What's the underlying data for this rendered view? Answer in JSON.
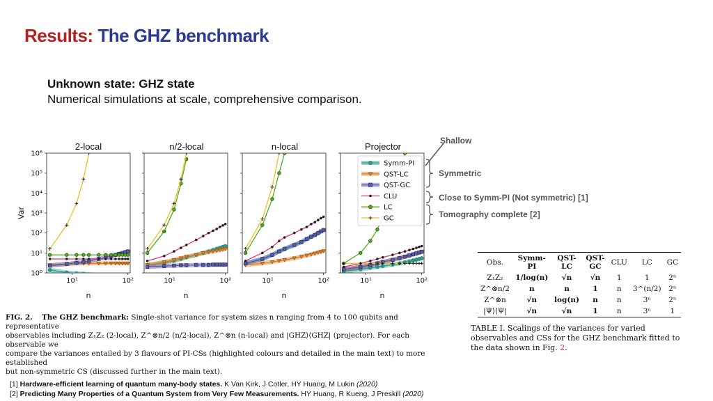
{
  "slide": {
    "title_part1": "Results:",
    "title_part2": "The GHZ benchmark",
    "subheading": "Unknown state: GHZ state",
    "subtext": "Numerical simulations at scale, comprehensive comparison."
  },
  "annotations": {
    "shallow": "Shallow",
    "symmetric": "Symmetric",
    "close": "Close to Symm-PI (Not symmetric) [1]",
    "tomography": "Tomography complete [2]"
  },
  "figure": {
    "caption_label": "FIG. 2.",
    "caption_bold": "The GHZ benchmark:",
    "caption_line1": "Single-shot variance for system sizes n ranging from 4 to 100 qubits and representative",
    "caption_line2": "observables including Z₁Z₂ (2-local), Z^⊗n/2 (n/2-local), Z^⊗n (n-local) and |GHZ⟩⟨GHZ| (projector). For each observable we",
    "caption_line3": "compare the variances entailed by 3 flavours of PI-CSs (highlighted colours and detailed in the main text) to more established",
    "caption_line4": "but non-symmetric CS (discussed further in the main text)."
  },
  "chart_data": {
    "type": "line",
    "ylabel": "Var",
    "xlabel": "n",
    "y_scale": "log",
    "x_scale": "log",
    "ylim": [
      1,
      1000000
    ],
    "xlim": [
      3.5,
      110
    ],
    "y_ticks": [
      "10⁰",
      "10¹",
      "10²",
      "10³",
      "10⁴",
      "10⁵",
      "10⁶"
    ],
    "x_ticks": [
      "10¹",
      "10²"
    ],
    "legend_placement": "inside-top-left of the Projector panel",
    "x": [
      4,
      8,
      12,
      16,
      20,
      30,
      40,
      50,
      60,
      70,
      80,
      90,
      100
    ],
    "panels": [
      {
        "title": "2-local",
        "series": [
          {
            "name": "Symm-PI",
            "values": [
              1.4,
              1.05,
              0.95,
              0.9,
              0.85,
              0.8,
              0.8,
              0.8,
              0.8,
              0.8,
              0.8,
              0.8,
              0.8
            ]
          },
          {
            "name": "QST-LC",
            "values": [
              2.5,
              2.8,
              3.0,
              3.0,
              3.0,
              3.0,
              3.0,
              3.0,
              3.0,
              3.0,
              3.0,
              3.0,
              3.0
            ]
          },
          {
            "name": "QST-GC",
            "values": [
              2.3,
              2.8,
              3.2,
              3.5,
              4,
              5,
              6,
              7,
              8,
              9,
              10,
              11,
              12
            ]
          },
          {
            "name": "CLU",
            "values": [
              5,
              5,
              5,
              5,
              5,
              5,
              5,
              5,
              5,
              5,
              5,
              5,
              5
            ]
          },
          {
            "name": "LC",
            "values": [
              8,
              8,
              8,
              8,
              8,
              8,
              8,
              8,
              8,
              8,
              8,
              8,
              8
            ]
          },
          {
            "name": "GC",
            "values": [
              16,
              250,
              3000,
              50000,
              1000000,
              null,
              null,
              null,
              null,
              null,
              null,
              null,
              null
            ]
          }
        ]
      },
      {
        "title": "n/2-local",
        "series": [
          {
            "name": "Symm-PI",
            "values": [
              2.5,
              3.2,
              4,
              5,
              6,
              8,
              10,
              12,
              14,
              16,
              18,
              20,
              22
            ]
          },
          {
            "name": "QST-LC",
            "values": [
              2.5,
              3.5,
              4.5,
              5.5,
              6.5,
              8,
              10,
              11,
              12,
              13,
              14,
              15,
              16
            ]
          },
          {
            "name": "QST-GC",
            "values": [
              2.0,
              2.2,
              2.3,
              2.4,
              2.4,
              2.5,
              2.5,
              2.5,
              2.6,
              2.6,
              2.6,
              2.6,
              2.6
            ]
          },
          {
            "name": "CLU",
            "values": [
              4,
              7,
              12,
              18,
              25,
              45,
              70,
              100,
              130,
              160,
              200,
              240,
              280
            ]
          },
          {
            "name": "LC",
            "values": [
              10,
              120,
              1500,
              30000,
              500000,
              null,
              null,
              null,
              null,
              null,
              null,
              null,
              null
            ]
          },
          {
            "name": "GC",
            "values": [
              16,
              250,
              3000,
              50000,
              1000000,
              null,
              null,
              null,
              null,
              null,
              null,
              null,
              null
            ]
          }
        ]
      },
      {
        "title": "n-local",
        "series": [
          {
            "name": "Symm-PI",
            "values": [
              3,
              5,
              8,
              12,
              16,
              25,
              35,
              50,
              65,
              80,
              100,
              120,
              140
            ]
          },
          {
            "name": "QST-LC",
            "values": [
              2.5,
              3.0,
              3.5,
              4.0,
              4.5,
              5.5,
              6.5,
              7.5,
              8.5,
              9.5,
              10.5,
              11.5,
              12.5
            ]
          },
          {
            "name": "QST-GC",
            "values": [
              3,
              5,
              8,
              12,
              16,
              25,
              35,
              50,
              65,
              80,
              100,
              120,
              140
            ]
          },
          {
            "name": "CLU",
            "values": [
              4,
              10,
              20,
              40,
              60,
              100,
              150,
              200,
              280,
              350,
              450,
              550,
              650
            ]
          },
          {
            "name": "LC",
            "values": [
              10,
              250,
              5000,
              100000,
              1000000,
              null,
              null,
              null,
              null,
              null,
              null,
              null,
              null
            ]
          },
          {
            "name": "GC",
            "values": [
              16,
              500,
              20000,
              1000000,
              null,
              null,
              null,
              null,
              null,
              null,
              null,
              null,
              null
            ]
          }
        ]
      },
      {
        "title": "Projector",
        "series": [
          {
            "name": "Symm-PI",
            "values": [
              1.2,
              1.5,
              1.8,
              2.0,
              2.2,
              2.6,
              3.0,
              3.4,
              3.8,
              4.2,
              4.6,
              5.0,
              5.4
            ]
          },
          {
            "name": "QST-LC",
            "values": [
              1.5,
              2.0,
              2.5,
              3.0,
              3.5,
              4.5,
              5.5,
              6.5,
              7.5,
              8.5,
              9.5,
              10.5,
              11.5
            ]
          },
          {
            "name": "QST-GC",
            "values": [
              1.5,
              2.0,
              2.5,
              3.0,
              3.5,
              4.5,
              5.5,
              6.5,
              7.5,
              8.5,
              9.5,
              10.5,
              11.5
            ]
          },
          {
            "name": "CLU",
            "values": [
              2,
              3,
              4,
              5,
              6,
              8,
              10,
              12,
              14,
              16,
              18,
              20,
              22
            ]
          },
          {
            "name": "LC",
            "values": [
              3,
              10,
              40,
              150,
              600,
              10000,
              100000,
              1000000,
              null,
              null,
              null,
              null,
              null
            ]
          },
          {
            "name": "GC",
            "values": [
              3,
              3,
              3,
              3,
              3,
              3,
              3,
              3,
              3,
              3,
              3,
              3,
              3
            ]
          }
        ]
      }
    ],
    "legend": [
      "Symm-PI",
      "QST-LC",
      "QST-GC",
      "CLU",
      "LC",
      "GC"
    ],
    "colors": {
      "Symm-PI": "#2a9d8f",
      "QST-LC": "#d9822b",
      "QST-GC": "#5a5aa8",
      "CLU": "#e0307a",
      "LC": "#55aa22",
      "GC": "#f0c020"
    }
  },
  "table": {
    "headers": [
      "Obs.",
      "Symm-PI",
      "QST-LC",
      "QST-GC",
      "CLU",
      "LC",
      "GC"
    ],
    "rows": [
      [
        "Z₁Z₂",
        "1/log(n)",
        "√n",
        "√n",
        "1",
        "1",
        "2ⁿ"
      ],
      [
        "Z^⊗n/2",
        "n",
        "n",
        "1",
        "n",
        "3^(n/2)",
        "2ⁿ"
      ],
      [
        "Z^⊗n",
        "√n",
        "log(n)",
        "n",
        "n",
        "3ⁿ",
        "2ⁿ"
      ],
      [
        "|Ψ⟩⟨Ψ|",
        "√n",
        "√n",
        "1",
        "n",
        "3ⁿ",
        "1"
      ]
    ],
    "caption_main": "TABLE I. Scalings of the variances for varied observables and CSs for the GHZ benchmark fitted to the data shown in Fig. ",
    "caption_ref": "2",
    "caption_end": "."
  },
  "references": [
    {
      "num": "[1]",
      "title": "Hardware-efficient learning of quantum many-body states.",
      "authors": "K Van Kirk, J Cotler, HY Huang, M Lukin",
      "year": "(2020)"
    },
    {
      "num": "[2]",
      "title": "Predicting Many Properties of a Quantum System from Very Few Measurements.",
      "authors": "HY Huang, R Kueng, J Preskill",
      "year": "(2020)"
    }
  ]
}
